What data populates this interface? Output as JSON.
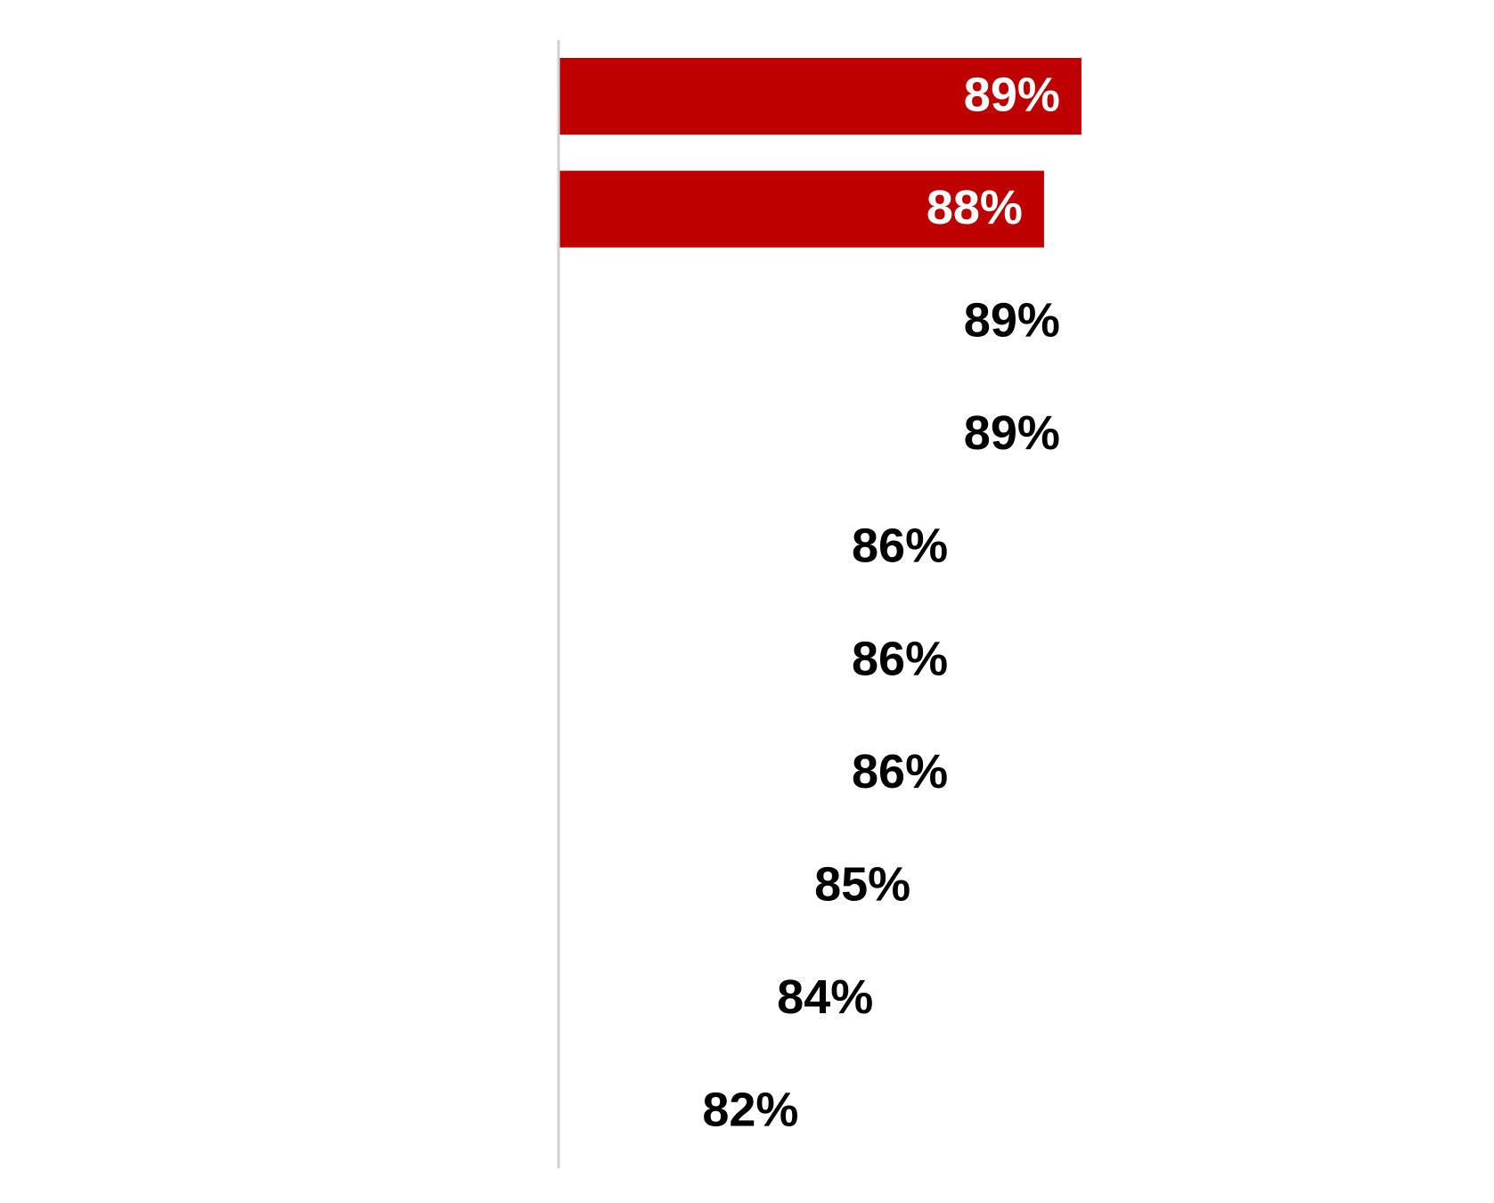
{
  "chart_data": {
    "type": "barh",
    "categories": [
      null,
      null,
      null,
      null,
      null,
      null,
      null,
      null,
      null,
      null
    ],
    "values": [
      89,
      88,
      89,
      89,
      86,
      86,
      86,
      85,
      84,
      82
    ],
    "value_labels": [
      "89%",
      "88%",
      "89%",
      "89%",
      "86%",
      "86%",
      "86%",
      "85%",
      "84%",
      "82%"
    ],
    "colors": [
      "#bf0000",
      "#bf0000",
      "#ffffff",
      "#ffffff",
      "#ffffff",
      "#ffffff",
      "#ffffff",
      "#ffffff",
      "#ffffff",
      "#ffffff"
    ],
    "xlim": [
      75,
      100
    ]
  }
}
